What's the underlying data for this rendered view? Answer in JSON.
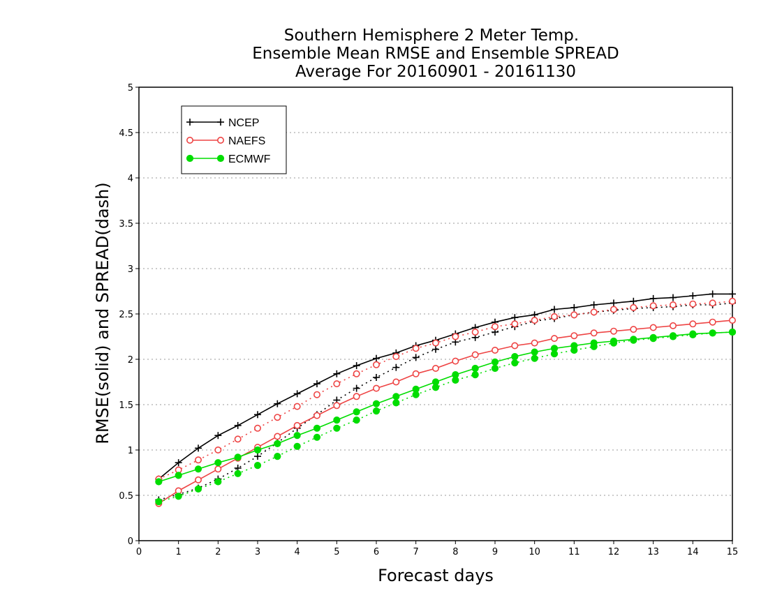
{
  "chart_data": {
    "type": "line",
    "title_lines": [
      "Southern Hemisphere 2 Meter Temp.",
      "Ensemble Mean RMSE and Ensemble SPREAD",
      "Average For 20160901 - 20161130"
    ],
    "xlabel": "Forecast days",
    "ylabel": "RMSE(solid) and SPREAD(dash)",
    "xlim": [
      0,
      15
    ],
    "ylim": [
      0,
      5
    ],
    "x_ticks": [
      "0",
      "1",
      "2",
      "3",
      "4",
      "5",
      "6",
      "7",
      "8",
      "9",
      "10",
      "11",
      "12",
      "13",
      "14",
      "15"
    ],
    "y_ticks": [
      "0",
      "0.5",
      "1",
      "1.5",
      "2",
      "2.5",
      "3",
      "3.5",
      "4",
      "4.5",
      "5"
    ],
    "grid": "horizontal dotted",
    "legend_position": "top-left",
    "x": [
      0.5,
      1,
      1.5,
      2,
      2.5,
      3,
      3.5,
      4,
      4.5,
      5,
      5.5,
      6,
      6.5,
      7,
      7.5,
      8,
      8.5,
      9,
      9.5,
      10,
      10.5,
      11,
      11.5,
      12,
      12.5,
      13,
      13.5,
      14,
      14.5,
      15
    ],
    "series": [
      {
        "name": "NCEP",
        "color": "#000000",
        "marker": "plus",
        "rmse": [
          0.68,
          0.86,
          1.02,
          1.16,
          1.27,
          1.39,
          1.51,
          1.62,
          1.73,
          1.84,
          1.93,
          2.01,
          2.07,
          2.15,
          2.21,
          2.28,
          2.35,
          2.41,
          2.46,
          2.49,
          2.55,
          2.57,
          2.6,
          2.62,
          2.64,
          2.67,
          2.68,
          2.7,
          2.72,
          2.72
        ],
        "spread": [
          0.45,
          0.51,
          0.58,
          0.68,
          0.8,
          0.93,
          1.08,
          1.24,
          1.39,
          1.55,
          1.68,
          1.8,
          1.91,
          2.02,
          2.11,
          2.19,
          2.24,
          2.3,
          2.36,
          2.42,
          2.45,
          2.49,
          2.52,
          2.54,
          2.56,
          2.57,
          2.58,
          2.6,
          2.6,
          2.62
        ]
      },
      {
        "name": "NAEFS",
        "color": "#ee4444",
        "marker": "circle",
        "rmse": [
          0.41,
          0.55,
          0.67,
          0.79,
          0.91,
          1.03,
          1.15,
          1.27,
          1.38,
          1.49,
          1.59,
          1.68,
          1.75,
          1.84,
          1.9,
          1.98,
          2.05,
          2.1,
          2.15,
          2.18,
          2.23,
          2.26,
          2.29,
          2.31,
          2.33,
          2.35,
          2.37,
          2.39,
          2.41,
          2.43
        ],
        "spread": [
          0.68,
          0.78,
          0.89,
          1.0,
          1.12,
          1.24,
          1.36,
          1.48,
          1.61,
          1.73,
          1.84,
          1.94,
          2.03,
          2.12,
          2.18,
          2.25,
          2.3,
          2.36,
          2.39,
          2.43,
          2.47,
          2.49,
          2.52,
          2.55,
          2.57,
          2.59,
          2.6,
          2.61,
          2.62,
          2.64
        ]
      },
      {
        "name": "ECMWF",
        "color": "#00dd00",
        "marker": "dot",
        "rmse": [
          0.65,
          0.72,
          0.79,
          0.86,
          0.92,
          1.0,
          1.07,
          1.16,
          1.24,
          1.33,
          1.42,
          1.51,
          1.59,
          1.67,
          1.75,
          1.83,
          1.9,
          1.97,
          2.03,
          2.08,
          2.12,
          2.15,
          2.18,
          2.2,
          2.22,
          2.24,
          2.26,
          2.28,
          2.29,
          2.3
        ],
        "spread": [
          0.43,
          0.49,
          0.57,
          0.65,
          0.74,
          0.83,
          0.93,
          1.04,
          1.14,
          1.24,
          1.33,
          1.43,
          1.52,
          1.61,
          1.69,
          1.77,
          1.83,
          1.9,
          1.96,
          2.01,
          2.06,
          2.1,
          2.14,
          2.18,
          2.21,
          2.23,
          2.25,
          2.27,
          2.29,
          2.3
        ]
      }
    ]
  }
}
